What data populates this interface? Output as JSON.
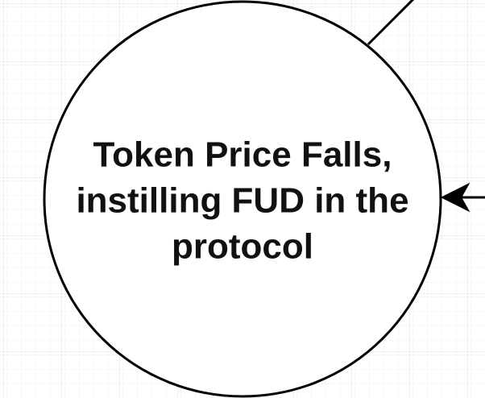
{
  "nodes": [
    {
      "label_lines": [
        "Token Price Falls,",
        "instilling FUD in the",
        "protocol"
      ]
    }
  ]
}
